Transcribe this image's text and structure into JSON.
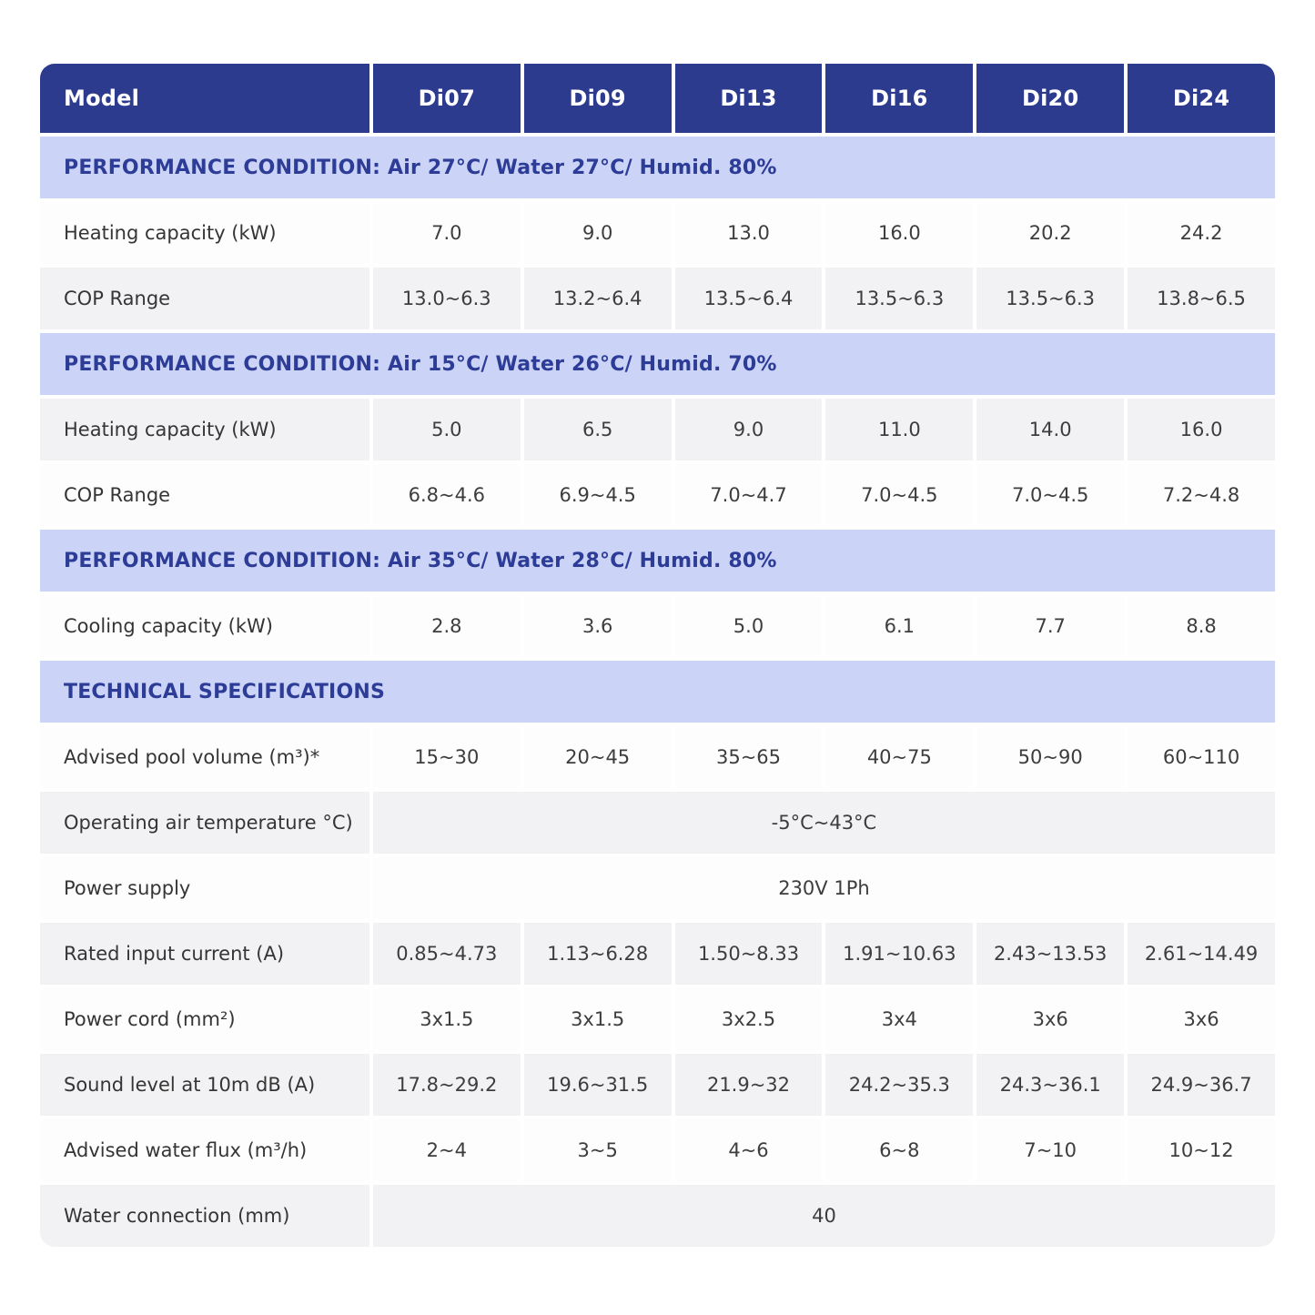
{
  "theme": {
    "header_bg": "#2d3b8e",
    "header_text": "#ffffff",
    "section_band_bg": "#cbd3f7",
    "section_band_text": "#2d3c96",
    "row_gray": "#f2f2f4",
    "row_white": "#fdfdfe",
    "body_text": "#3d3d3d"
  },
  "table": {
    "header": {
      "model_label": "Model",
      "models": [
        "Di07",
        "Di09",
        "Di13",
        "Di16",
        "Di20",
        "Di24"
      ]
    },
    "sections": [
      {
        "title": "PERFORMANCE CONDITION: Air 27°C/ Water 27°C/ Humid. 80%",
        "rows": [
          {
            "label": "Heating capacity (kW)",
            "shade": "white",
            "values": [
              "7.0",
              "9.0",
              "13.0",
              "16.0",
              "20.2",
              "24.2"
            ]
          },
          {
            "label": "COP Range",
            "shade": "gray",
            "values": [
              "13.0~6.3",
              "13.2~6.4",
              "13.5~6.4",
              "13.5~6.3",
              "13.5~6.3",
              "13.8~6.5"
            ]
          }
        ]
      },
      {
        "title": "PERFORMANCE CONDITION: Air 15°C/ Water 26°C/ Humid. 70%",
        "rows": [
          {
            "label": "Heating capacity (kW)",
            "shade": "gray",
            "values": [
              "5.0",
              "6.5",
              "9.0",
              "11.0",
              "14.0",
              "16.0"
            ]
          },
          {
            "label": "COP Range",
            "shade": "white",
            "values": [
              "6.8~4.6",
              "6.9~4.5",
              "7.0~4.7",
              "7.0~4.5",
              "7.0~4.5",
              "7.2~4.8"
            ]
          }
        ]
      },
      {
        "title": "PERFORMANCE CONDITION: Air 35°C/ Water 28°C/ Humid. 80%",
        "rows": [
          {
            "label": "Cooling capacity (kW)",
            "shade": "white",
            "values": [
              "2.8",
              "3.6",
              "5.0",
              "6.1",
              "7.7",
              "8.8"
            ]
          }
        ]
      },
      {
        "title": "TECHNICAL SPECIFICATIONS",
        "rows": [
          {
            "label": "Advised pool volume (m³)*",
            "shade": "white",
            "values": [
              "15~30",
              "20~45",
              "35~65",
              "40~75",
              "50~90",
              "60~110"
            ]
          },
          {
            "label": "Operating air temperature °C)",
            "shade": "gray",
            "span_value": "-5°C~43°C"
          },
          {
            "label": "Power supply",
            "shade": "white",
            "span_value": "230V 1Ph"
          },
          {
            "label": "Rated input current (A)",
            "shade": "gray",
            "values": [
              "0.85~4.73",
              "1.13~6.28",
              "1.50~8.33",
              "1.91~10.63",
              "2.43~13.53",
              "2.61~14.49"
            ]
          },
          {
            "label": "Power cord (mm²)",
            "shade": "white",
            "values": [
              "3x1.5",
              "3x1.5",
              "3x2.5",
              "3x4",
              "3x6",
              "3x6"
            ]
          },
          {
            "label": "Sound level at 10m dB (A)",
            "shade": "gray",
            "values": [
              "17.8~29.2",
              "19.6~31.5",
              "21.9~32",
              "24.2~35.3",
              "24.3~36.1",
              "24.9~36.7"
            ]
          },
          {
            "label": "Advised water flux (m³/h)",
            "shade": "white",
            "values": [
              "2~4",
              "3~5",
              "4~6",
              "6~8",
              "7~10",
              "10~12"
            ]
          },
          {
            "label": "Water connection (mm)",
            "shade": "gray",
            "span_value": "40"
          }
        ]
      }
    ]
  }
}
